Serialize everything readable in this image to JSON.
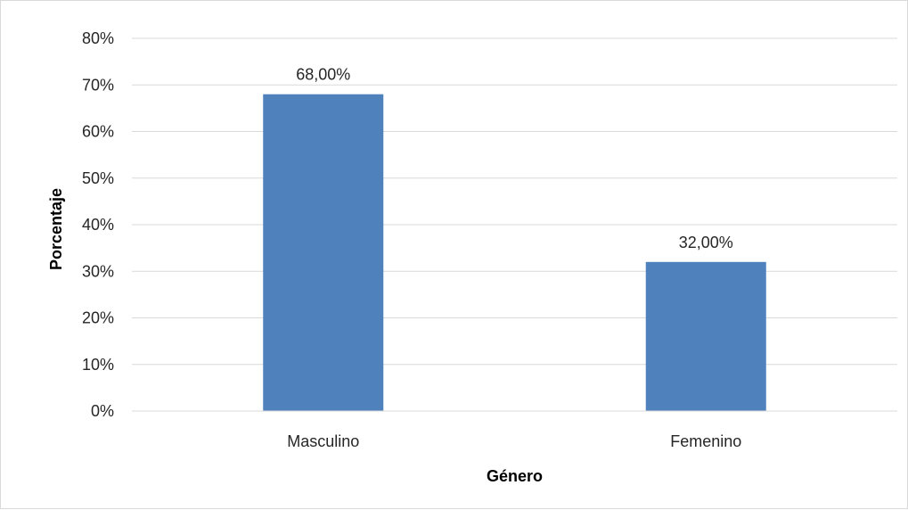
{
  "chart_data": {
    "type": "bar",
    "categories": [
      "Masculino",
      "Femenino"
    ],
    "values": [
      68,
      32
    ],
    "data_labels": [
      "68,00%",
      "32,00%"
    ],
    "xlabel": "Género",
    "ylabel": "Porcentaje",
    "ylim": [
      0,
      80
    ],
    "yticks": [
      0,
      10,
      20,
      30,
      40,
      50,
      60,
      70,
      80
    ],
    "ytick_labels": [
      "0%",
      "10%",
      "20%",
      "30%",
      "40%",
      "50%",
      "60%",
      "70%",
      "80%"
    ],
    "grid": true,
    "legend": "none",
    "bar_color": "#4f81bd",
    "grid_color": "#d9d9d9"
  }
}
